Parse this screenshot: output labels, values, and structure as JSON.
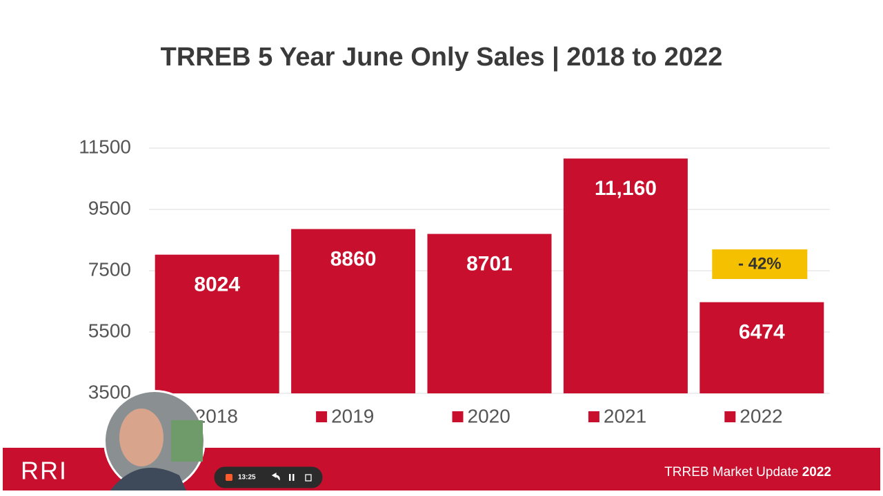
{
  "chart_data": {
    "type": "bar",
    "title": "TRREB 5 Year June Only Sales | 2018 to 2022",
    "categories": [
      "2018",
      "2019",
      "2020",
      "2021",
      "2022"
    ],
    "values": [
      8024,
      8860,
      8701,
      11160,
      6474
    ],
    "value_labels": [
      "8024",
      "8860",
      "8701",
      "11,160",
      "6474"
    ],
    "color": "#c8102e",
    "ylim": [
      3500,
      11500
    ],
    "yticks": [
      3500,
      5500,
      7500,
      9500,
      11500
    ],
    "grid": true,
    "annotation": "- 42%",
    "annotation_color": "#f5c000"
  },
  "footer": {
    "logo": "RRI",
    "text": "TRREB Market Update ",
    "year": "2022"
  },
  "recorder": {
    "time": "13:25"
  }
}
